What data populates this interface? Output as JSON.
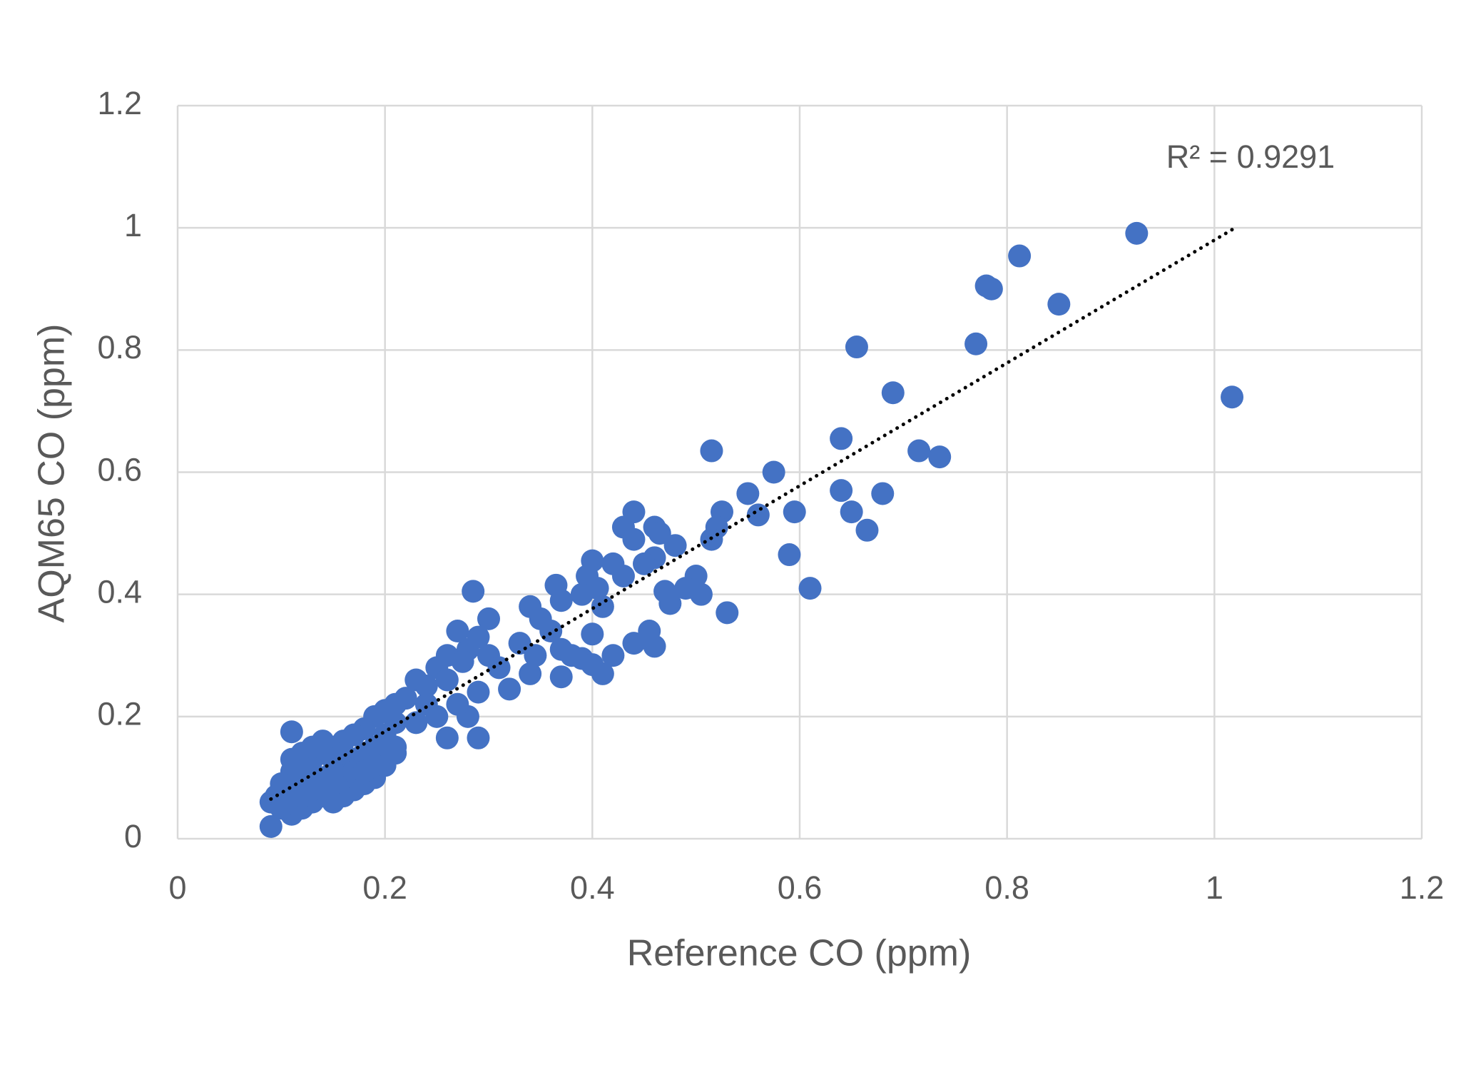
{
  "chart_data": {
    "type": "scatter",
    "x_label": "Reference CO (ppm)",
    "y_label": "AQM65 CO (ppm)",
    "annotation": "R² = 0.9291",
    "color": "#4472c4",
    "grid": true,
    "xlim": [
      0,
      1.2
    ],
    "xticks": [
      0,
      0.2,
      0.4,
      0.6,
      0.8,
      1,
      1.2
    ],
    "ylim": [
      0,
      1.2
    ],
    "yticks": [
      0,
      0.2,
      0.4,
      0.6,
      0.8,
      1,
      1.2
    ],
    "trendline": {
      "x": [
        0.09,
        1.02
      ],
      "y": [
        0.065,
        1.0
      ],
      "color": "#000000"
    },
    "x": [
      1.017,
      0.925,
      0.812,
      0.78,
      0.785,
      0.85,
      0.77,
      0.655,
      0.69,
      0.64,
      0.715,
      0.735,
      0.515,
      0.575,
      0.55,
      0.64,
      0.65,
      0.68,
      0.665,
      0.595,
      0.59,
      0.61,
      0.56,
      0.525,
      0.52,
      0.515,
      0.53,
      0.5,
      0.49,
      0.505,
      0.47,
      0.475,
      0.46,
      0.465,
      0.48,
      0.46,
      0.44,
      0.43,
      0.44,
      0.45,
      0.42,
      0.43,
      0.4,
      0.395,
      0.405,
      0.41,
      0.39,
      0.365,
      0.37,
      0.34,
      0.35,
      0.36,
      0.33,
      0.345,
      0.37,
      0.38,
      0.4,
      0.39,
      0.4,
      0.41,
      0.42,
      0.44,
      0.455,
      0.46,
      0.34,
      0.32,
      0.37,
      0.285,
      0.3,
      0.27,
      0.29,
      0.28,
      0.26,
      0.275,
      0.3,
      0.31,
      0.25,
      0.26,
      0.24,
      0.29,
      0.28,
      0.27,
      0.29,
      0.26,
      0.23,
      0.22,
      0.24,
      0.25,
      0.21,
      0.2,
      0.19,
      0.21,
      0.23,
      0.2,
      0.18,
      0.17,
      0.16,
      0.15,
      0.14,
      0.13,
      0.12,
      0.11,
      0.1,
      0.095,
      0.09,
      0.09,
      0.11,
      0.21,
      0.2,
      0.19,
      0.18,
      0.17,
      0.16,
      0.15,
      0.14,
      0.13,
      0.12,
      0.11,
      0.1,
      0.12,
      0.13,
      0.14,
      0.15,
      0.16,
      0.17,
      0.18,
      0.19,
      0.2,
      0.21,
      0.12,
      0.11,
      0.13,
      0.14,
      0.15,
      0.16,
      0.17,
      0.18,
      0.19,
      0.2,
      0.1,
      0.11,
      0.12,
      0.13,
      0.14,
      0.15,
      0.16,
      0.17,
      0.18,
      0.19
    ],
    "values": [
      0.723,
      0.991,
      0.954,
      0.905,
      0.9,
      0.875,
      0.81,
      0.805,
      0.73,
      0.655,
      0.635,
      0.625,
      0.635,
      0.6,
      0.565,
      0.57,
      0.535,
      0.565,
      0.505,
      0.535,
      0.465,
      0.41,
      0.53,
      0.535,
      0.51,
      0.49,
      0.37,
      0.43,
      0.41,
      0.4,
      0.405,
      0.385,
      0.51,
      0.5,
      0.48,
      0.46,
      0.535,
      0.51,
      0.49,
      0.45,
      0.45,
      0.43,
      0.455,
      0.43,
      0.41,
      0.38,
      0.4,
      0.415,
      0.39,
      0.38,
      0.36,
      0.34,
      0.32,
      0.3,
      0.31,
      0.3,
      0.335,
      0.295,
      0.285,
      0.27,
      0.3,
      0.32,
      0.34,
      0.315,
      0.27,
      0.245,
      0.265,
      0.405,
      0.36,
      0.34,
      0.33,
      0.31,
      0.3,
      0.29,
      0.3,
      0.28,
      0.28,
      0.26,
      0.25,
      0.24,
      0.2,
      0.22,
      0.165,
      0.165,
      0.26,
      0.23,
      0.22,
      0.2,
      0.22,
      0.21,
      0.2,
      0.19,
      0.19,
      0.17,
      0.18,
      0.17,
      0.16,
      0.15,
      0.14,
      0.13,
      0.12,
      0.11,
      0.09,
      0.07,
      0.06,
      0.02,
      0.175,
      0.14,
      0.12,
      0.1,
      0.09,
      0.08,
      0.07,
      0.06,
      0.07,
      0.06,
      0.05,
      0.04,
      0.05,
      0.09,
      0.1,
      0.1,
      0.11,
      0.12,
      0.13,
      0.14,
      0.15,
      0.16,
      0.15,
      0.14,
      0.13,
      0.15,
      0.16,
      0.13,
      0.14,
      0.1,
      0.12,
      0.13,
      0.14,
      0.08,
      0.07,
      0.07,
      0.08,
      0.09,
      0.09,
      0.1,
      0.11,
      0.11,
      0.12
    ]
  }
}
